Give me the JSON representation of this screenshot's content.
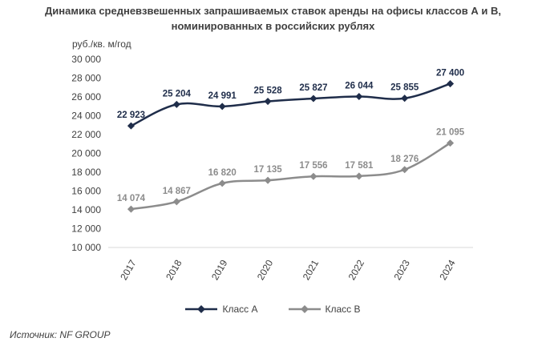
{
  "chart_data": {
    "type": "line",
    "title_line1": "Динамика средневзвешенных запрашиваемых ставок аренды на офисы классов А и В,",
    "title_line2": "номинированных в российских рублях",
    "ylabel": "руб./кв. м/год",
    "ylim": [
      10000,
      30000
    ],
    "yticks": [
      10000,
      12000,
      14000,
      16000,
      18000,
      20000,
      22000,
      24000,
      26000,
      28000,
      30000
    ],
    "ytick_labels": [
      "10 000",
      "12 000",
      "14 000",
      "16 000",
      "18 000",
      "20 000",
      "22 000",
      "24 000",
      "26 000",
      "28 000",
      "30 000"
    ],
    "categories": [
      "2017",
      "2018",
      "2019",
      "2020",
      "2021",
      "2022",
      "2023",
      "2024"
    ],
    "grid": false,
    "legend_position": "bottom",
    "series": [
      {
        "name": "Класс А",
        "color": "#1f2d4a",
        "values": [
          22923,
          25204,
          24991,
          25528,
          25827,
          26044,
          25855,
          27400
        ],
        "labels": [
          "22 923",
          "25 204",
          "24 991",
          "25 528",
          "25 827",
          "26 044",
          "25 855",
          "27 400"
        ]
      },
      {
        "name": "Класс В",
        "color": "#8c8c8c",
        "values": [
          14074,
          14867,
          16820,
          17135,
          17556,
          17581,
          18276,
          21095
        ],
        "labels": [
          "14 074",
          "14 867",
          "16 820",
          "17 135",
          "17 556",
          "17 581",
          "18 276",
          "21 095"
        ]
      }
    ]
  },
  "source": "Источник: NF GROUP"
}
